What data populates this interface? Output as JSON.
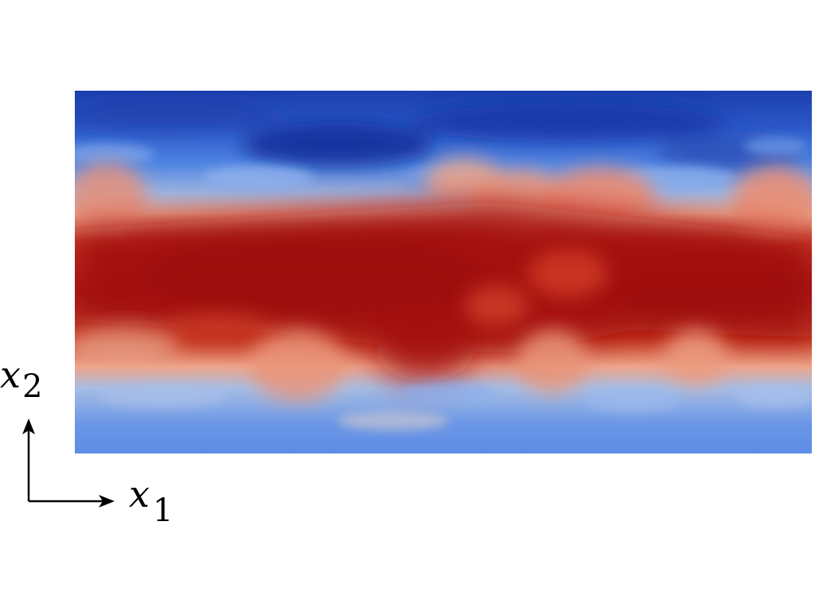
{
  "figure": {
    "field_colormap": {
      "low": "#1f3fb8",
      "mid": "#d9c8c0",
      "high": "#a50f0f"
    }
  },
  "axes": {
    "x1": {
      "symbol": "x",
      "subscript": "1"
    },
    "x2": {
      "symbol": "x",
      "subscript": "2"
    }
  }
}
